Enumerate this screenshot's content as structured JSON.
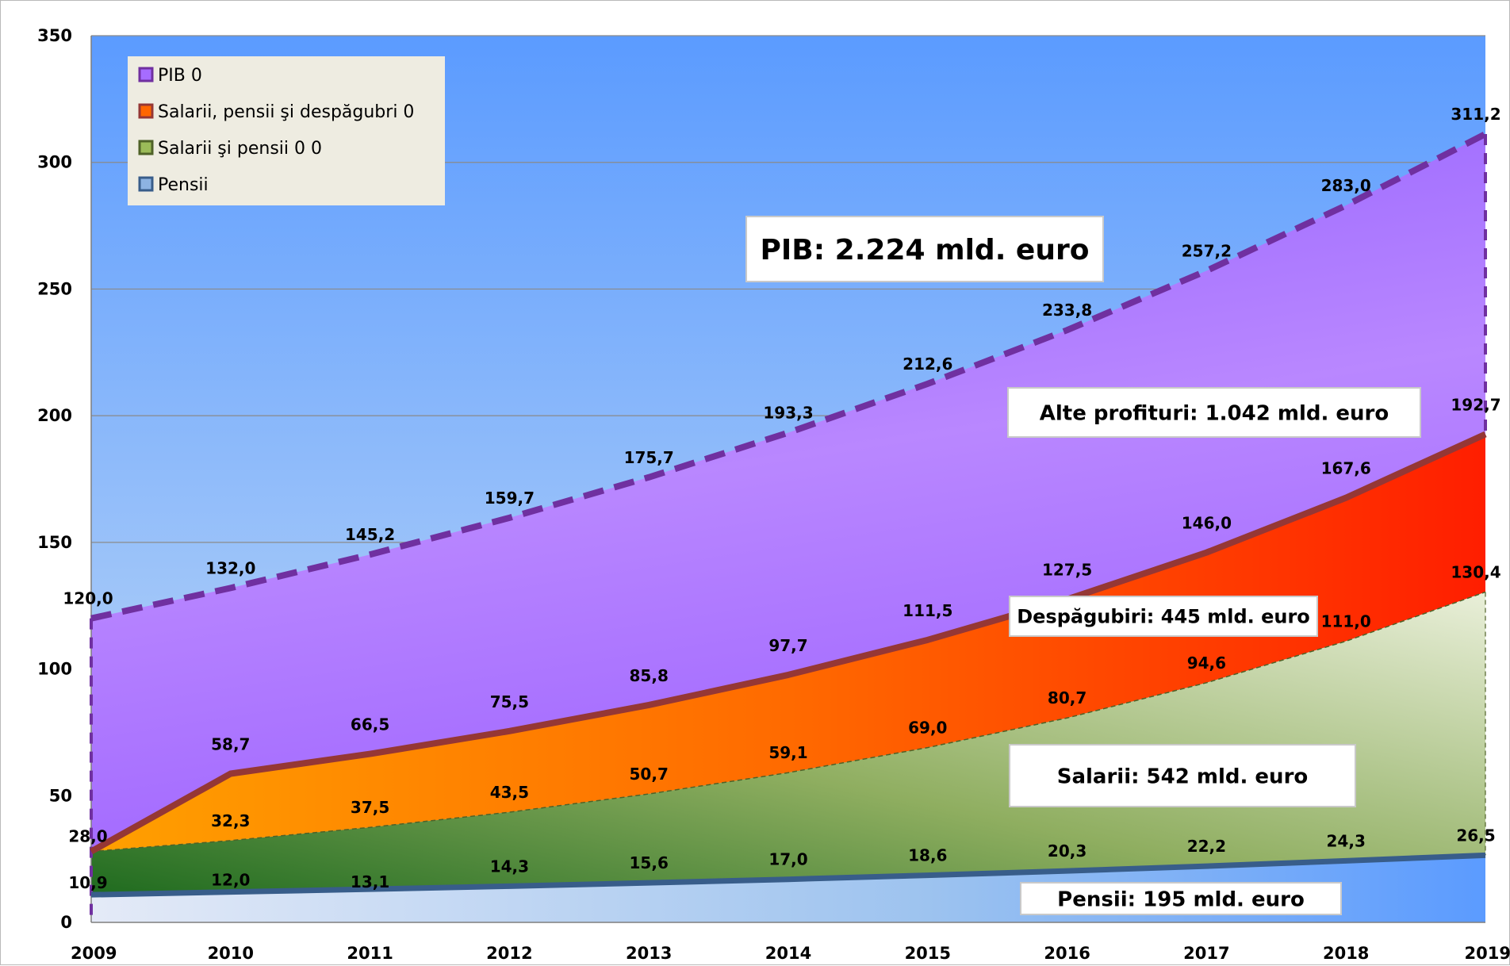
{
  "chart_data": {
    "type": "area",
    "categories": [
      "2009",
      "2010",
      "2011",
      "2012",
      "2013",
      "2014",
      "2015",
      "2016",
      "2017",
      "2018",
      "2019"
    ],
    "ylim": [
      0,
      350
    ],
    "yticks": [
      0,
      50,
      100,
      150,
      200,
      250,
      300,
      350
    ],
    "ytick_labels": [
      "0",
      "50",
      "100",
      "150",
      "200",
      "250",
      "300",
      "350"
    ],
    "grid": true,
    "legend_position": "top-left",
    "series": [
      {
        "name": "PIB 0",
        "values": [
          120.0,
          132.0,
          145.2,
          159.7,
          175.7,
          193.3,
          212.6,
          233.8,
          257.2,
          283.0,
          311.2
        ],
        "labels": [
          "120,0",
          "132,0",
          "145,2",
          "159,7",
          "175,7",
          "193,3",
          "212,6",
          "233,8",
          "257,2",
          "283,0",
          "311,2"
        ],
        "color": "#7030a0",
        "fill": "#a66cff"
      },
      {
        "name": "Salarii, pensii şi despăgubri 0",
        "values": [
          28.0,
          58.7,
          66.5,
          75.5,
          85.8,
          97.7,
          111.5,
          127.5,
          146.0,
          167.6,
          192.7
        ],
        "labels": [
          "28,0",
          "58,7",
          "66,5",
          "75,5",
          "85,8",
          "97,7",
          "111,5",
          "127,5",
          "146,0",
          "167,6",
          "192,7"
        ],
        "color": "#953735",
        "fill": "#ff6600"
      },
      {
        "name": "Salarii şi pensii 0 0",
        "values": [
          28.0,
          32.3,
          37.5,
          43.5,
          50.7,
          59.1,
          69.0,
          80.7,
          94.6,
          111.0,
          130.4
        ],
        "labels": [
          "",
          "32,3",
          "37,5",
          "43,5",
          "50,7",
          "59,1",
          "69,0",
          "80,7",
          "94,6",
          "111,0",
          "130,4"
        ],
        "color": "#4f6228",
        "fill": "#9bbb59"
      },
      {
        "name": "Pensii",
        "values": [
          10.9,
          12.0,
          13.1,
          14.3,
          15.6,
          17.0,
          18.6,
          20.3,
          22.2,
          24.3,
          26.5
        ],
        "labels": [
          "10,9",
          "12,0",
          "13,1",
          "14,3",
          "15,6",
          "17,0",
          "18,6",
          "20,3",
          "22,2",
          "24,3",
          "26,5"
        ],
        "color": "#385d8a",
        "fill": "#8db3e2"
      }
    ],
    "annotations": [
      {
        "text": "PIB:  2.224 mld. euro"
      },
      {
        "text": "Alte profituri:  1.042 mld. euro"
      },
      {
        "text": "Despăgubiri: 445 mld. euro"
      },
      {
        "text": "Salarii:  542 mld. euro"
      },
      {
        "text": "Pensii: 195  mld. euro"
      }
    ],
    "colors": {
      "plot_bg_top": "#5b9bff",
      "plot_bg_bottom": "#c6ddf5",
      "legend_bg": "#eeece1"
    }
  }
}
